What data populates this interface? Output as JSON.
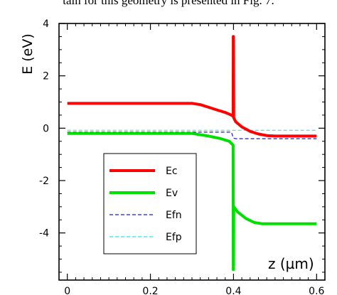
{
  "caption": "tain for this geometry is presented in Fig. 7.",
  "chart_data": {
    "type": "line",
    "title": "",
    "xlabel": "z (µm)",
    "ylabel": "E (eV)",
    "xlim": [
      -0.02,
      0.62
    ],
    "ylim": [
      -5.8,
      4.0
    ],
    "x_ticks": [
      0,
      0.2,
      0.4,
      0.6
    ],
    "x_tick_labels": [
      "0",
      "0.2",
      "0.4",
      "0.6"
    ],
    "y_ticks": [
      4,
      2,
      0,
      -2,
      -4
    ],
    "y_tick_labels": [
      "4",
      "2",
      "0",
      "-2",
      "-4"
    ],
    "grid": false,
    "legend_position": "center-left",
    "series": [
      {
        "name": "Ec",
        "color": "#ff0000",
        "style": "solid",
        "width": 4,
        "x": [
          0,
          0.1,
          0.2,
          0.3,
          0.32,
          0.34,
          0.36,
          0.38,
          0.395,
          0.399,
          0.3995,
          0.4,
          0.4005,
          0.405,
          0.42,
          0.44,
          0.46,
          0.48,
          0.5,
          0.55,
          0.6
        ],
        "y": [
          0.95,
          0.95,
          0.95,
          0.95,
          0.9,
          0.8,
          0.7,
          0.6,
          0.5,
          0.45,
          3.5,
          3.5,
          0.4,
          0.25,
          0.05,
          -0.12,
          -0.22,
          -0.28,
          -0.3,
          -0.3,
          -0.3
        ]
      },
      {
        "name": "Ev",
        "color": "#00e000",
        "style": "solid",
        "width": 4,
        "x": [
          0,
          0.1,
          0.2,
          0.3,
          0.34,
          0.37,
          0.39,
          0.399,
          0.3995,
          0.4,
          0.4005,
          0.41,
          0.43,
          0.45,
          0.47,
          0.5,
          0.55,
          0.6
        ],
        "y": [
          -0.2,
          -0.2,
          -0.2,
          -0.2,
          -0.3,
          -0.4,
          -0.5,
          -0.65,
          -5.4,
          -5.4,
          -3.0,
          -3.2,
          -3.45,
          -3.6,
          -3.65,
          -3.65,
          -3.65,
          -3.65
        ]
      },
      {
        "name": "Efn",
        "color": "#1a1acc",
        "style": "dashed",
        "width": 1.2,
        "x": [
          0,
          0.1,
          0.2,
          0.3,
          0.395,
          0.4,
          0.405,
          0.5,
          0.6
        ],
        "y": [
          -0.15,
          -0.15,
          -0.15,
          -0.15,
          -0.15,
          -0.38,
          -0.4,
          -0.4,
          -0.4
        ]
      },
      {
        "name": "Efp",
        "color": "#33ddee",
        "style": "dashed",
        "width": 1.2,
        "x": [
          0,
          0.1,
          0.2,
          0.3,
          0.4,
          0.5,
          0.6
        ],
        "y": [
          -0.08,
          -0.08,
          -0.08,
          -0.08,
          -0.08,
          -0.08,
          -0.08
        ]
      }
    ]
  }
}
